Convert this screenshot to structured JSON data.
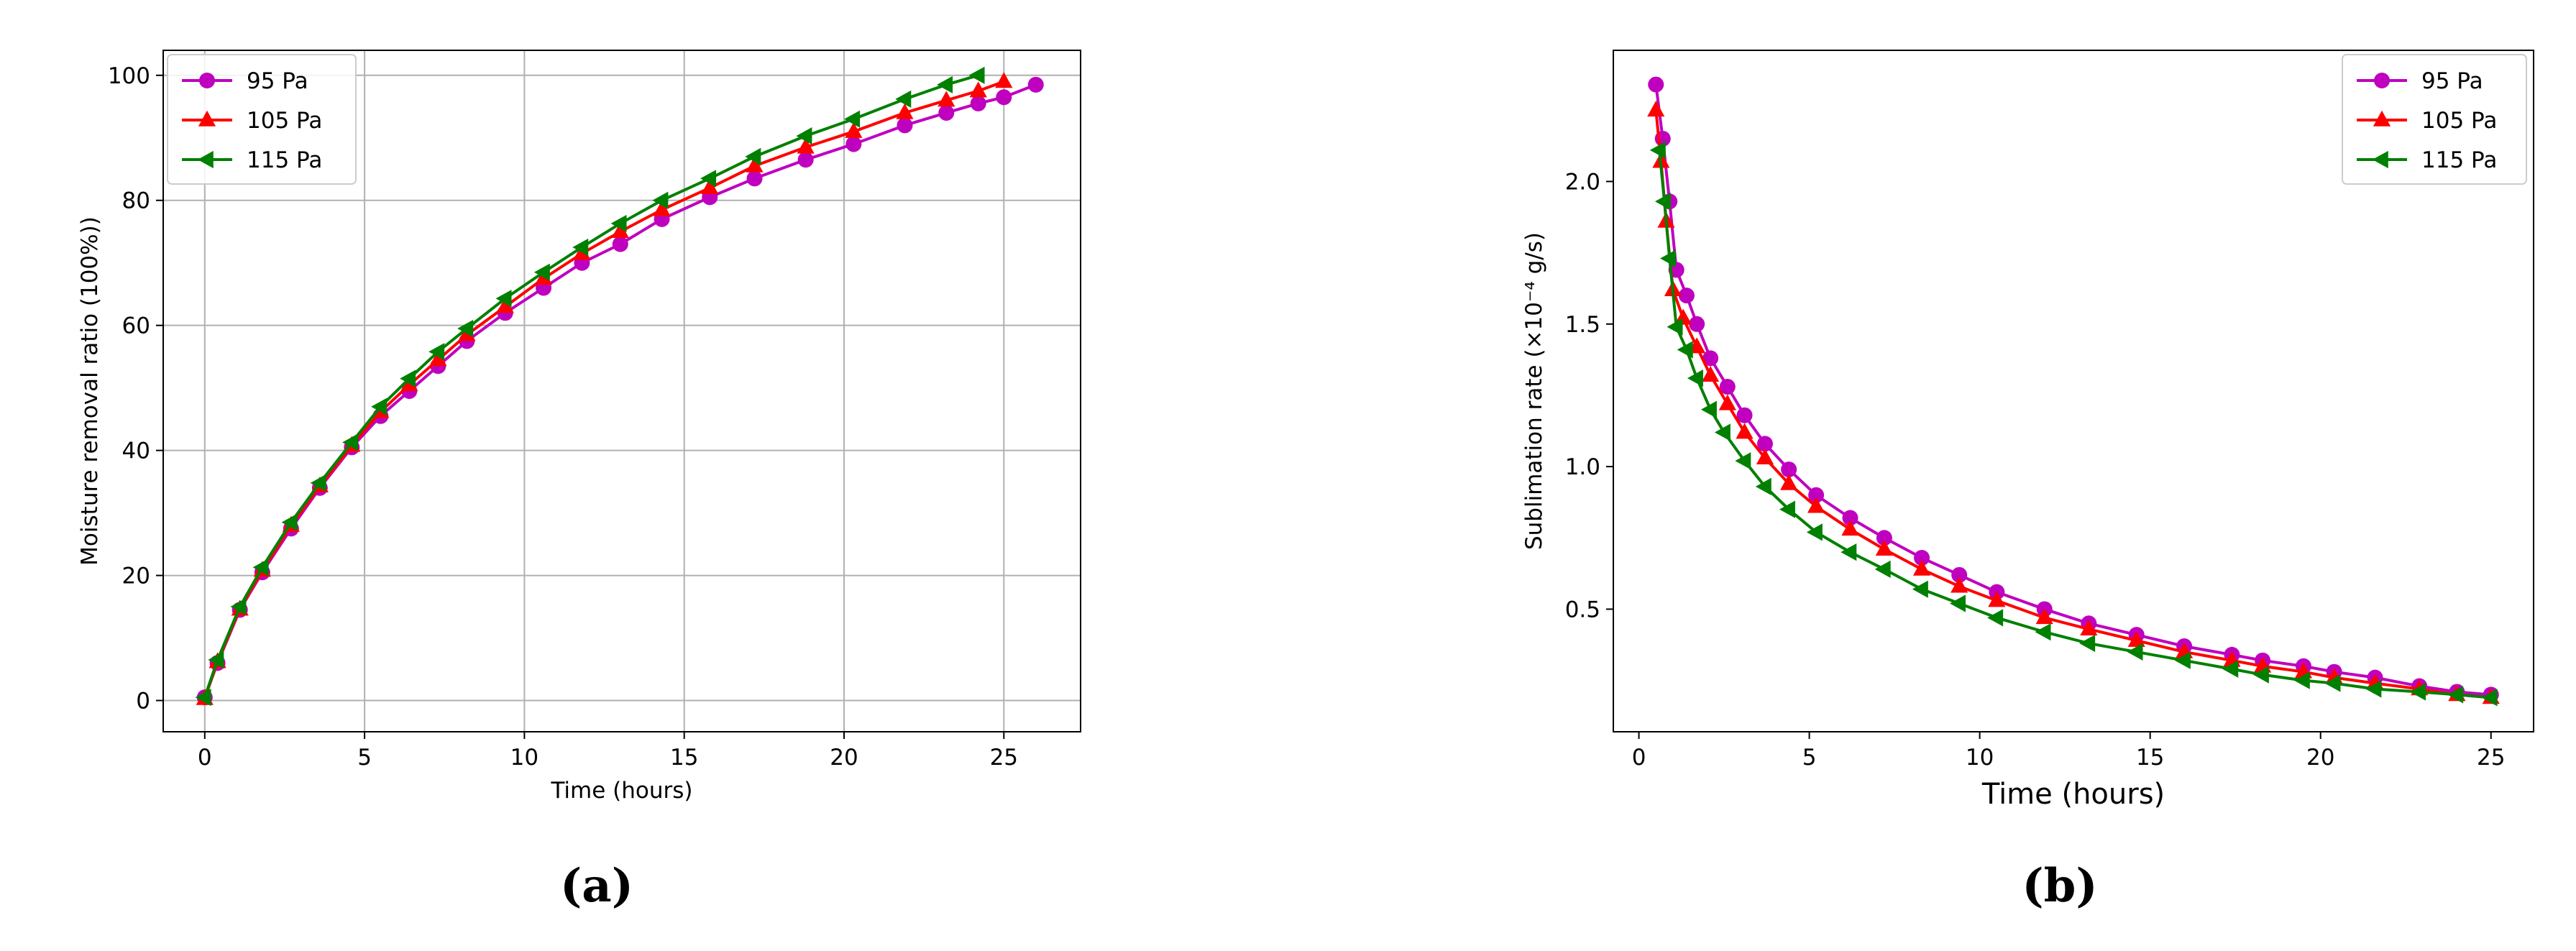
{
  "captions": {
    "a": "(a)",
    "b": "(b)"
  },
  "chart_data": [
    {
      "type": "line",
      "panel": "(a)",
      "title": "",
      "xlabel": "Time (hours)",
      "ylabel": "Moisture removal ratio (100%))",
      "xlim": [
        -1.3,
        27.4
      ],
      "ylim": [
        -5,
        104
      ],
      "xticks": [
        0,
        5,
        10,
        15,
        20,
        25
      ],
      "yticks": [
        0,
        20,
        40,
        60,
        80,
        100
      ],
      "grid": true,
      "legend": "top-left",
      "series": [
        {
          "name": "95 Pa",
          "color": "#bf00bf",
          "marker": "circle",
          "x": [
            0,
            0.4,
            1.1,
            1.8,
            2.7,
            3.6,
            4.6,
            5.5,
            6.4,
            7.3,
            8.2,
            9.4,
            10.6,
            11.8,
            13.0,
            14.3,
            15.8,
            17.2,
            18.8,
            20.3,
            21.9,
            23.2,
            24.2,
            25.0,
            26.0
          ],
          "y": [
            0.5,
            6,
            14.5,
            20.5,
            27.5,
            34,
            40.5,
            45.5,
            49.5,
            53.5,
            57.5,
            62,
            66,
            70,
            73,
            77,
            80.5,
            83.5,
            86.5,
            89,
            92,
            94,
            95.5,
            96.5,
            98.5
          ]
        },
        {
          "name": "105 Pa",
          "color": "#ff0000",
          "marker": "triangle-up",
          "x": [
            0,
            0.4,
            1.1,
            1.8,
            2.7,
            3.6,
            4.6,
            5.5,
            6.4,
            7.3,
            8.2,
            9.4,
            10.6,
            11.8,
            13.0,
            14.3,
            15.8,
            17.2,
            18.8,
            20.3,
            21.9,
            23.2,
            24.2,
            25.0
          ],
          "y": [
            0.3,
            6.2,
            14.6,
            20.8,
            28,
            34.3,
            40.8,
            46.2,
            50.5,
            54.5,
            58.5,
            63,
            67.5,
            71.5,
            75,
            78.5,
            82,
            85.5,
            88.5,
            91,
            94,
            96,
            97.5,
            99
          ]
        },
        {
          "name": "115 Pa",
          "color": "#008000",
          "marker": "triangle-left",
          "x": [
            0,
            0.4,
            1.1,
            1.8,
            2.7,
            3.6,
            4.6,
            5.5,
            6.4,
            7.3,
            8.2,
            9.4,
            10.6,
            11.8,
            13.0,
            14.3,
            15.8,
            17.2,
            18.8,
            20.3,
            21.9,
            23.2,
            24.2
          ],
          "y": [
            0.5,
            6.5,
            15,
            21.3,
            28.5,
            34.8,
            41.3,
            47,
            51.5,
            55.8,
            59.5,
            64.3,
            68.5,
            72.5,
            76.3,
            80,
            83.5,
            87,
            90.3,
            93,
            96.2,
            98.5,
            100
          ]
        }
      ]
    },
    {
      "type": "line",
      "panel": "(b)",
      "title": "",
      "xlabel": "Time (hours)",
      "ylabel": "Sublimation rate (×10⁻⁴ g/s)",
      "xlim": [
        -0.75,
        26.25
      ],
      "ylim": [
        0.07,
        2.46
      ],
      "xticks": [
        0,
        5,
        10,
        15,
        20,
        25
      ],
      "yticks": [
        0.5,
        1.0,
        1.5,
        2.0
      ],
      "grid": false,
      "legend": "top-right",
      "series": [
        {
          "name": "95 Pa",
          "color": "#bf00bf",
          "marker": "circle",
          "x": [
            0.5,
            0.7,
            0.9,
            1.1,
            1.4,
            1.7,
            2.1,
            2.6,
            3.1,
            3.7,
            4.4,
            5.2,
            6.2,
            7.2,
            8.3,
            9.4,
            10.5,
            11.9,
            13.2,
            14.6,
            16.0,
            17.4,
            18.3,
            19.5,
            20.4,
            21.6,
            22.9,
            24.0,
            25.0
          ],
          "y": [
            2.34,
            2.15,
            1.93,
            1.69,
            1.6,
            1.5,
            1.38,
            1.28,
            1.18,
            1.08,
            0.99,
            0.9,
            0.82,
            0.75,
            0.68,
            0.62,
            0.56,
            0.5,
            0.45,
            0.41,
            0.37,
            0.34,
            0.32,
            0.3,
            0.28,
            0.26,
            0.23,
            0.21,
            0.2
          ]
        },
        {
          "name": "105 Pa",
          "color": "#ff0000",
          "marker": "triangle-up",
          "x": [
            0.5,
            0.65,
            0.8,
            1.0,
            1.3,
            1.7,
            2.1,
            2.6,
            3.1,
            3.7,
            4.4,
            5.2,
            6.2,
            7.2,
            8.3,
            9.4,
            10.5,
            11.9,
            13.2,
            14.6,
            16.0,
            17.4,
            18.3,
            19.5,
            20.4,
            21.6,
            22.9,
            24.0,
            25.0
          ],
          "y": [
            2.25,
            2.07,
            1.86,
            1.62,
            1.52,
            1.42,
            1.32,
            1.22,
            1.12,
            1.03,
            0.94,
            0.86,
            0.78,
            0.71,
            0.64,
            0.58,
            0.53,
            0.47,
            0.43,
            0.39,
            0.35,
            0.32,
            0.3,
            0.28,
            0.26,
            0.24,
            0.22,
            0.2,
            0.19
          ]
        },
        {
          "name": "115 Pa",
          "color": "#008000",
          "marker": "triangle-left",
          "x": [
            0.6,
            0.75,
            0.9,
            1.1,
            1.4,
            1.7,
            2.1,
            2.5,
            3.1,
            3.7,
            4.4,
            5.2,
            6.2,
            7.2,
            8.3,
            9.4,
            10.5,
            11.9,
            13.2,
            14.6,
            16.0,
            17.4,
            18.3,
            19.5,
            20.4,
            21.6,
            22.9,
            24.0,
            25.0
          ],
          "y": [
            2.11,
            1.93,
            1.73,
            1.49,
            1.41,
            1.31,
            1.2,
            1.12,
            1.02,
            0.93,
            0.85,
            0.77,
            0.7,
            0.64,
            0.57,
            0.52,
            0.47,
            0.42,
            0.38,
            0.35,
            0.32,
            0.29,
            0.27,
            0.25,
            0.24,
            0.22,
            0.21,
            0.2,
            0.19
          ]
        }
      ]
    }
  ]
}
